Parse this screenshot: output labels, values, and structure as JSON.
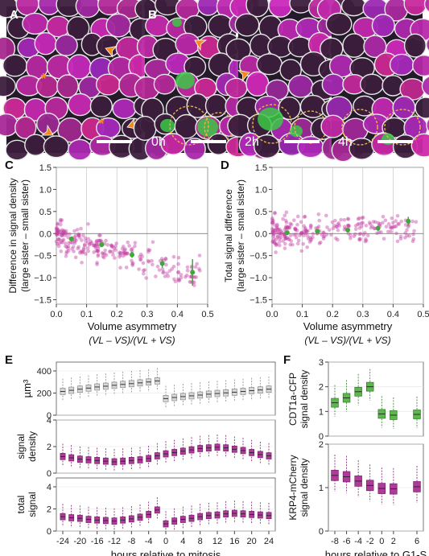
{
  "panels": {
    "A": {
      "letter": "A"
    },
    "B": {
      "letter": "B",
      "times": [
        "0h",
        "2h",
        "4h"
      ]
    },
    "C": {
      "letter": "C"
    },
    "D": {
      "letter": "D"
    },
    "E": {
      "letter": "E"
    },
    "F": {
      "letter": "F"
    }
  },
  "colors": {
    "magenta": "#c0399f",
    "green": "#3fa83a",
    "orange": "#f28a1e",
    "gray_box": "#d7d7d7"
  },
  "chart_data": [
    {
      "id": "C",
      "type": "scatter",
      "ylabel_line1": "Difference in signal density",
      "ylabel_line2": "(large sister – small sister)",
      "xlabel_line1": "Volume asymmetry",
      "xlabel_line2": "(VL – VS)/(VL + VS)",
      "xlim": [
        0,
        0.5
      ],
      "ylim": [
        -1.6,
        1.5
      ],
      "xticks": [
        "0.0",
        "0.1",
        "0.2",
        "0.3",
        "0.4",
        "0.5"
      ],
      "yticks": [
        "−1.5",
        "−1.0",
        "−0.5",
        "0.0",
        "0.5",
        "1.0",
        "1.5"
      ],
      "grid": true,
      "binned_means": [
        {
          "x": 0.05,
          "y": -0.12,
          "err": 0.05
        },
        {
          "x": 0.15,
          "y": -0.25,
          "err": 0.06
        },
        {
          "x": 0.25,
          "y": -0.48,
          "err": 0.07
        },
        {
          "x": 0.35,
          "y": -0.68,
          "err": 0.1
        },
        {
          "x": 0.45,
          "y": -0.88,
          "err": 0.3
        }
      ]
    },
    {
      "id": "D",
      "type": "scatter",
      "ylabel_line1": "Total signal difference",
      "ylabel_line2": "(large sister – small sister)",
      "xlabel_line1": "Volume asymmetry",
      "xlabel_line2": "(VL – VS)/(VL + VS)",
      "xlim": [
        0,
        0.5
      ],
      "ylim": [
        -1.6,
        1.5
      ],
      "xticks": [
        "0.0",
        "0.1",
        "0.2",
        "0.3",
        "0.4",
        "0.5"
      ],
      "yticks": [
        "−1.5",
        "−1.0",
        "−0.5",
        "0.0",
        "0.5",
        "1.0",
        "1.5"
      ],
      "grid": true,
      "binned_means": [
        {
          "x": 0.05,
          "y": 0.02,
          "err": 0.04
        },
        {
          "x": 0.15,
          "y": 0.05,
          "err": 0.04
        },
        {
          "x": 0.25,
          "y": 0.08,
          "err": 0.05
        },
        {
          "x": 0.35,
          "y": 0.12,
          "err": 0.06
        },
        {
          "x": 0.45,
          "y": 0.28,
          "err": 0.1
        }
      ]
    },
    {
      "id": "E",
      "type": "box",
      "xlabel": "hours relative to mitosis",
      "x": [
        -24,
        -22,
        -20,
        -18,
        -16,
        -14,
        -12,
        -10,
        -8,
        -6,
        -4,
        -2,
        0,
        2,
        4,
        6,
        8,
        10,
        12,
        14,
        16,
        18,
        20,
        22,
        24
      ],
      "xticks": [
        "-24",
        "-20",
        "-16",
        "-12",
        "-8",
        "-4",
        "0",
        "4",
        "8",
        "12",
        "16",
        "20",
        "24"
      ],
      "subplots": [
        {
          "ylabel": "µm³",
          "ylim": [
            0,
            480
          ],
          "yticks": [
            "0",
            "200",
            "400"
          ],
          "color": "gray",
          "medians": [
            215,
            225,
            235,
            245,
            255,
            262,
            270,
            278,
            285,
            292,
            300,
            310,
            150,
            160,
            168,
            175,
            182,
            190,
            196,
            202,
            208,
            215,
            222,
            228,
            235
          ]
        },
        {
          "ylabel_line1": "signal",
          "ylabel_line2": "density",
          "ylim": [
            0,
            4
          ],
          "yticks": [
            "0",
            "2",
            "4"
          ],
          "color": "magenta",
          "medians": [
            1.25,
            1.15,
            1.05,
            1.0,
            0.95,
            0.9,
            0.85,
            0.9,
            0.95,
            1.0,
            1.1,
            1.3,
            1.45,
            1.55,
            1.65,
            1.75,
            1.85,
            1.9,
            1.95,
            1.9,
            1.8,
            1.7,
            1.55,
            1.4,
            1.3
          ]
        },
        {
          "ylabel_line1": "total",
          "ylabel_line2": "signal",
          "ylim": [
            0,
            4.8
          ],
          "yticks": [
            "0",
            "2",
            "4"
          ],
          "color": "magenta",
          "medians": [
            1.3,
            1.2,
            1.15,
            1.05,
            1.0,
            0.95,
            0.9,
            1.0,
            1.1,
            1.25,
            1.5,
            1.9,
            0.65,
            0.9,
            1.05,
            1.15,
            1.3,
            1.4,
            1.45,
            1.55,
            1.6,
            1.55,
            1.5,
            1.45,
            1.4
          ]
        }
      ]
    },
    {
      "id": "F",
      "type": "box",
      "xlabel": "hours relative to G1-S",
      "x": [
        -8,
        -6,
        -4,
        -2,
        0,
        2,
        6
      ],
      "xticks": [
        "-8",
        "-6",
        "-4",
        "-2",
        "0",
        "2",
        "6"
      ],
      "subplots": [
        {
          "ylabel_line1": "CDT1a-CFP",
          "ylabel_line2": "signal density",
          "ylim": [
            0,
            3
          ],
          "yticks": [
            "0",
            "1",
            "2",
            "3"
          ],
          "color": "green",
          "medians": [
            1.35,
            1.55,
            1.8,
            2.0,
            0.9,
            0.85,
            0.88
          ]
        },
        {
          "ylabel_line1": "KRP4-mCherry",
          "ylabel_line2": "signal density",
          "ylim": [
            0,
            2
          ],
          "yticks": [
            "0",
            "1",
            "2"
          ],
          "color": "magenta",
          "medians": [
            1.28,
            1.25,
            1.15,
            1.05,
            0.98,
            0.97,
            1.02
          ]
        }
      ]
    }
  ]
}
